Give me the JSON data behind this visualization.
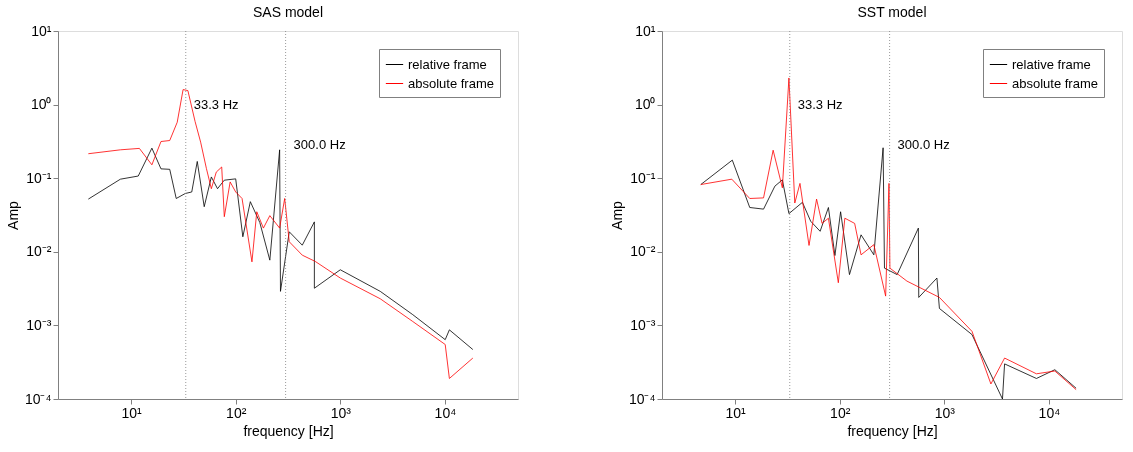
{
  "chart_data": [
    {
      "type": "line",
      "title": "SAS model",
      "xlabel": "frequency [Hz]",
      "ylabel": "Amp",
      "log": "xy",
      "grid": false,
      "legend": "top right",
      "xlim": [
        2,
        50000
      ],
      "ylim": [
        0.0001,
        10
      ],
      "xticks": [
        {
          "value": 10,
          "label": "10¹"
        },
        {
          "value": 100,
          "label": "10²"
        },
        {
          "value": 1000,
          "label": "10³"
        },
        {
          "value": 10000,
          "label": "10⁴"
        }
      ],
      "yticks": [
        {
          "value": 0.0001,
          "label": "10⁻⁴"
        },
        {
          "value": 0.001,
          "label": "10⁻³"
        },
        {
          "value": 0.01,
          "label": "10⁻²"
        },
        {
          "value": 0.1,
          "label": "10⁻¹"
        },
        {
          "value": 1,
          "label": "10⁰"
        },
        {
          "value": 10,
          "label": "10¹"
        }
      ],
      "ref_lines": [
        {
          "axis": "x",
          "value": 33.3,
          "color": "#808080",
          "line_style": "dotted",
          "label": "33.3 Hz"
        },
        {
          "axis": "x",
          "value": 300,
          "color": "#808080",
          "line_style": "dotted",
          "label": "300.0 Hz"
        }
      ],
      "series": [
        {
          "name": "relative frame",
          "color": "#000000",
          "x": [
            3.9,
            7.9,
            11.7,
            15.8,
            19.3,
            23.4,
            27,
            33,
            38,
            42.9,
            50,
            58.5,
            67,
            77.8,
            100,
            117,
            138,
            170,
            212,
            263,
            268,
            325,
            433,
            565,
            565,
            1000,
            2410,
            4930,
            10070,
            11040,
            18500
          ],
          "values": [
            0.052,
            0.097,
            0.107,
            0.256,
            0.134,
            0.132,
            0.053,
            0.062,
            0.065,
            0.169,
            0.041,
            0.104,
            0.072,
            0.094,
            0.098,
            0.016,
            0.048,
            0.025,
            0.0077,
            0.243,
            0.0029,
            0.0187,
            0.0123,
            0.0255,
            0.0032,
            0.0057,
            0.0029,
            0.0014,
            0.00064,
            0.00087,
            0.00047
          ]
        },
        {
          "name": "absolute frame",
          "color": "#ff0000",
          "x": [
            3.9,
            7.9,
            12,
            15.8,
            19.3,
            23.4,
            27.6,
            31.4,
            34.9,
            40.9,
            46.2,
            52.5,
            58.5,
            65.2,
            73.5,
            77.8,
            88.5,
            100,
            115,
            143,
            159,
            184,
            212,
            263,
            294,
            325,
            433,
            576,
            1000,
            2410,
            4930,
            10070,
            11040,
            18500
          ],
          "values": [
            0.215,
            0.243,
            0.254,
            0.152,
            0.315,
            0.325,
            0.576,
            1.6,
            1.55,
            0.589,
            0.309,
            0.135,
            0.072,
            0.121,
            0.142,
            0.03,
            0.089,
            0.065,
            0.053,
            0.0073,
            0.035,
            0.021,
            0.031,
            0.021,
            0.053,
            0.0137,
            0.009,
            0.0074,
            0.0044,
            0.0023,
            0.00113,
            0.00055,
            0.00019,
            0.00036
          ]
        }
      ]
    },
    {
      "type": "line",
      "title": "SST model",
      "xlabel": "frequency [Hz]",
      "ylabel": "Amp",
      "log": "xy",
      "grid": false,
      "legend": "top right",
      "xlim": [
        2,
        50000
      ],
      "ylim": [
        0.0001,
        10
      ],
      "xticks": [
        {
          "value": 10,
          "label": "10¹"
        },
        {
          "value": 100,
          "label": "10²"
        },
        {
          "value": 1000,
          "label": "10³"
        },
        {
          "value": 10000,
          "label": "10⁴"
        }
      ],
      "yticks": [
        {
          "value": 0.0001,
          "label": "10⁻⁴"
        },
        {
          "value": 0.001,
          "label": "10⁻³"
        },
        {
          "value": 0.01,
          "label": "10⁻²"
        },
        {
          "value": 0.1,
          "label": "10⁻¹"
        },
        {
          "value": 1,
          "label": "10⁰"
        },
        {
          "value": 10,
          "label": "10¹"
        }
      ],
      "ref_lines": [
        {
          "axis": "x",
          "value": 33.3,
          "color": "#808080",
          "line_style": "dotted",
          "label": "33.3 Hz"
        },
        {
          "axis": "x",
          "value": 300,
          "color": "#808080",
          "line_style": "dotted",
          "label": "300.0 Hz"
        }
      ],
      "series": [
        {
          "name": "relative frame",
          "color": "#000000",
          "x": [
            4.7,
            9.4,
            13.8,
            18.7,
            24,
            28.3,
            32.7,
            44,
            52.8,
            65,
            78,
            90,
            102,
            124,
            160,
            212,
            260,
            268,
            354,
            565,
            570,
            850,
            898,
            1840,
            3600,
            3770,
            7600,
            11400,
            18200
          ],
          "values": [
            0.082,
            0.176,
            0.04,
            0.038,
            0.078,
            0.095,
            0.033,
            0.047,
            0.026,
            0.019,
            0.04,
            0.0089,
            0.035,
            0.0049,
            0.017,
            0.0091,
            0.259,
            0.006,
            0.0049,
            0.021,
            0.0024,
            0.0044,
            0.0017,
            0.00075,
            0.0001,
            0.0003,
            0.00019,
            0.00025,
            0.00014
          ]
        },
        {
          "name": "absolute frame",
          "color": "#ff0000",
          "x": [
            4.7,
            9.3,
            13.8,
            18.7,
            23.1,
            28.3,
            32.7,
            37.2,
            41.7,
            50.9,
            60.1,
            67.8,
            78,
            97,
            112,
            139,
            160,
            212,
            275,
            296,
            302,
            439,
            898,
            1840,
            2790,
            3770,
            7600,
            11400,
            18200
          ],
          "values": [
            0.082,
            0.097,
            0.053,
            0.054,
            0.24,
            0.074,
            2.3,
            0.046,
            0.085,
            0.0122,
            0.052,
            0.0243,
            0.0286,
            0.0038,
            0.0286,
            0.0243,
            0.0091,
            0.0125,
            0.0025,
            0.085,
            0.006,
            0.004,
            0.0024,
            0.00083,
            0.00016,
            0.00036,
            0.00022,
            0.00024,
            0.000134
          ]
        }
      ]
    }
  ]
}
